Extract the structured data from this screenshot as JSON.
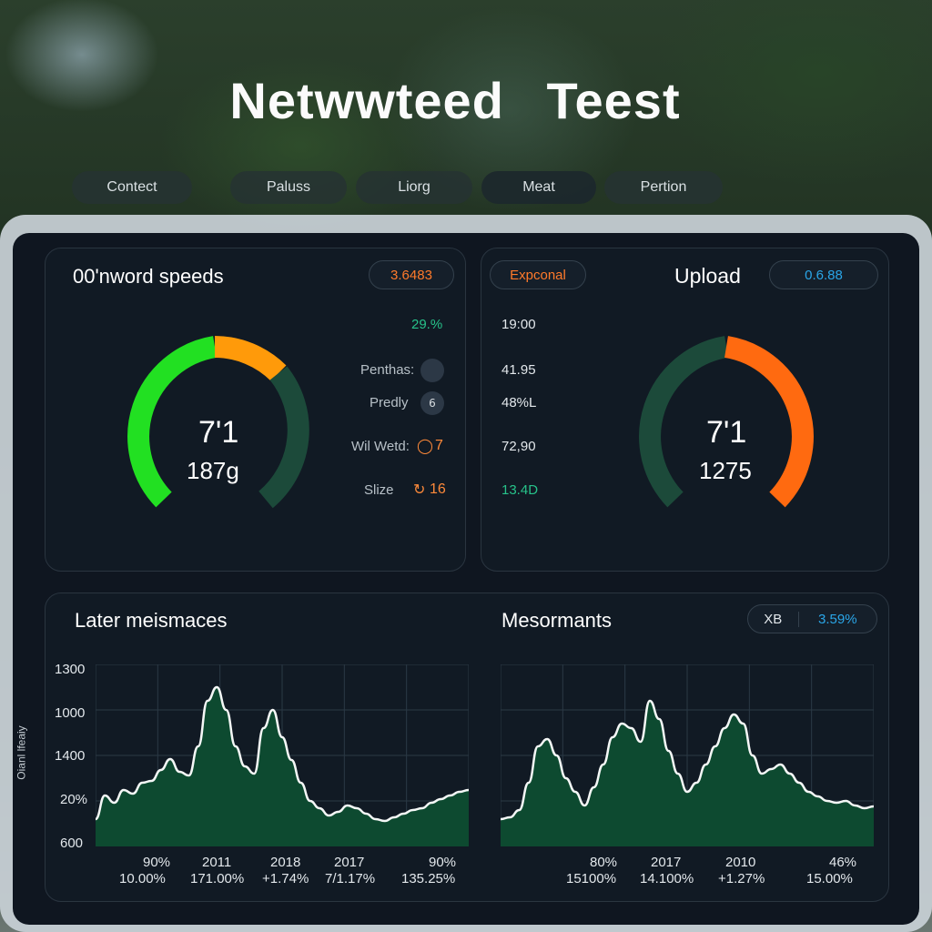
{
  "title": "Netwwteed   Teest",
  "nav": [
    "Contect",
    "Paluss",
    "Liorg",
    "Meat",
    "Pertion"
  ],
  "download": {
    "title": "00'nword speeds",
    "badge": "3.6483",
    "gauge_value_top": "7'1",
    "gauge_value_bottom": "187g",
    "percent": "29.%",
    "stats": [
      {
        "label": "Penthas:",
        "value": ""
      },
      {
        "label": "Predly",
        "value": "6"
      },
      {
        "label": "Wil Wetd:",
        "value": "7"
      },
      {
        "label": "Slize",
        "value": "16"
      }
    ]
  },
  "upload": {
    "chip": "Expconal",
    "title": "Upload",
    "badge": "0.6.88",
    "gauge_value_top": "7'1",
    "gauge_value_bottom": "1275",
    "values": [
      "19:00",
      "41.95",
      "48%L",
      "72,90",
      "13.4D"
    ]
  },
  "left_chart": {
    "title": "Later meismaces",
    "ylabel": "Oianl lfeaiy",
    "yticks": [
      "1300",
      "1000",
      "1400",
      "20%",
      "600"
    ],
    "x_top": [
      "90%",
      "2011",
      "2018",
      "2017",
      "90%"
    ],
    "x_bottom": [
      "10.00%",
      "171.00%",
      "+1.74%",
      "7/1.17%",
      "135.25%"
    ]
  },
  "right_chart": {
    "title": "Mesormants",
    "toggle_left": "XB",
    "toggle_right": "3.59%",
    "x_top": [
      "80%",
      "2017",
      "2010",
      "46%"
    ],
    "x_bottom": [
      "15100%",
      "14.100%",
      "+1.27%",
      "15.00%"
    ]
  },
  "colors": {
    "green": "#22e022",
    "orange_gauge": "#ff9a0a",
    "orange_upload": "#ff6a10",
    "gauge_track": "#1c4a3a",
    "area_fill": "#0d4a30",
    "teal_text": "#27c28a",
    "orange_text": "#ff8a3a",
    "blue_text": "#2aa6e8"
  },
  "chart_data": [
    {
      "type": "area",
      "title": "Later meismaces",
      "ylabel": "Oianl lfeaiy",
      "x": [
        0,
        1,
        2,
        3,
        4,
        5,
        6,
        7,
        8,
        9,
        10,
        11,
        12,
        13,
        14,
        15,
        16,
        17,
        18,
        19,
        20,
        21,
        22,
        23,
        24,
        25,
        26,
        27,
        28,
        29,
        30,
        31,
        32,
        33,
        34,
        35,
        36,
        37,
        38,
        39,
        40
      ],
      "values": [
        30,
        56,
        48,
        62,
        58,
        70,
        72,
        84,
        96,
        82,
        78,
        110,
        160,
        175,
        150,
        110,
        88,
        80,
        130,
        150,
        120,
        95,
        70,
        50,
        42,
        34,
        38,
        45,
        42,
        36,
        30,
        28,
        32,
        36,
        40,
        42,
        48,
        52,
        56,
        60,
        62
      ],
      "ylim": [
        0,
        200
      ]
    },
    {
      "type": "area",
      "title": "Mesormants",
      "x": [
        0,
        1,
        2,
        3,
        4,
        5,
        6,
        7,
        8,
        9,
        10,
        11,
        12,
        13,
        14,
        15,
        16,
        17,
        18,
        19,
        20,
        21,
        22,
        23,
        24,
        25,
        26,
        27,
        28,
        29,
        30,
        31,
        32,
        33,
        34,
        35,
        36,
        37,
        38,
        39,
        40
      ],
      "values": [
        30,
        32,
        40,
        70,
        110,
        118,
        100,
        75,
        60,
        45,
        65,
        90,
        120,
        135,
        130,
        115,
        160,
        140,
        105,
        80,
        60,
        70,
        90,
        110,
        130,
        145,
        135,
        100,
        80,
        85,
        90,
        80,
        70,
        60,
        55,
        50,
        48,
        50,
        45,
        42,
        44
      ],
      "ylim": [
        0,
        200
      ]
    }
  ]
}
